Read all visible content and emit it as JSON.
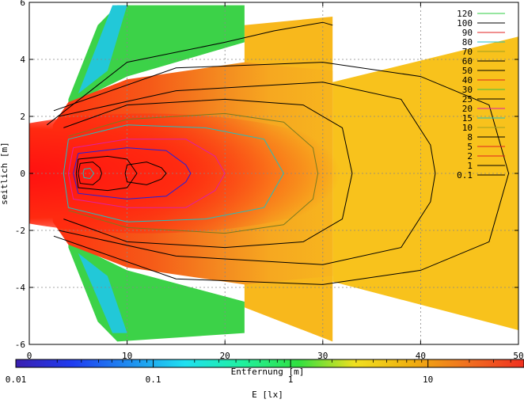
{
  "chart_data": {
    "type": "heatmap",
    "title": "",
    "xlabel": "Entfernung [m]",
    "ylabel": "seitlich [m]",
    "xlim": [
      0,
      50
    ],
    "ylim": [
      -6,
      6
    ],
    "grid": true,
    "x_ticks": [
      "0",
      "10",
      "20",
      "30",
      "40",
      "50"
    ],
    "y_ticks": [
      "-6",
      "-4",
      "-2",
      "0",
      "2",
      "4",
      "6"
    ],
    "legend_position": "top-right",
    "legend": [
      {
        "label": "120",
        "color": "#2ecc40"
      },
      {
        "label": "100",
        "color": "#000000"
      },
      {
        "label": "90",
        "color": "#e02020"
      },
      {
        "label": "80",
        "color": "#20c0c0"
      },
      {
        "label": "70",
        "color": "#a0a020"
      },
      {
        "label": "60",
        "color": "#000000"
      },
      {
        "label": "50",
        "color": "#000000"
      },
      {
        "label": "40",
        "color": "#e02020"
      },
      {
        "label": "30",
        "color": "#40c040"
      },
      {
        "label": "25",
        "color": "#000000"
      },
      {
        "label": "20",
        "color": "#e020a0"
      },
      {
        "label": "15",
        "color": "#20c0c0"
      },
      {
        "label": "10",
        "color": "#a0a020"
      },
      {
        "label": "8",
        "color": "#000000"
      },
      {
        "label": "5",
        "color": "#e02020"
      },
      {
        "label": "2",
        "color": "#e02020"
      },
      {
        "label": "1",
        "color": "#000000"
      },
      {
        "label": "0.1",
        "color": "#000000"
      }
    ],
    "colorbar": {
      "label": "E [lx]",
      "scale": "log",
      "range": [
        0.01,
        50
      ],
      "tick_labels": [
        "0.01",
        "0.1",
        "1",
        "10"
      ],
      "stops": [
        "#3a1fb0",
        "#1f3cf0",
        "#1f8cf0",
        "#20e0f0",
        "#20f0a0",
        "#30e040",
        "#f0e020",
        "#f0b010",
        "#f07020",
        "#f03020"
      ]
    },
    "contours": [
      {
        "level": 0.1,
        "color": "#000000",
        "points": [
          [
            1.8,
            1.7
          ],
          [
            10,
            3.9
          ],
          [
            20,
            4.6
          ],
          [
            25,
            5.0
          ],
          [
            30,
            5.3
          ],
          [
            31,
            5.2
          ]
        ]
      },
      {
        "level": 1,
        "color": "#000000",
        "points": [
          [
            2.5,
            2.2
          ],
          [
            15,
            3.7
          ],
          [
            30,
            3.9
          ],
          [
            40,
            3.4
          ],
          [
            47,
            2.4
          ],
          [
            49,
            0
          ],
          [
            47,
            -2.4
          ],
          [
            40,
            -3.4
          ],
          [
            30,
            -3.9
          ],
          [
            15,
            -3.7
          ],
          [
            2.5,
            -2.2
          ]
        ]
      },
      {
        "level": 2,
        "color": "#000000",
        "points": [
          [
            3,
            2.0
          ],
          [
            15,
            2.9
          ],
          [
            30,
            3.2
          ],
          [
            38,
            2.6
          ],
          [
            41,
            1.0
          ],
          [
            41.5,
            0
          ],
          [
            41,
            -1.0
          ],
          [
            38,
            -2.6
          ],
          [
            30,
            -3.2
          ],
          [
            15,
            -2.9
          ],
          [
            3,
            -2.0
          ]
        ]
      },
      {
        "level": 5,
        "color": "#000000",
        "points": [
          [
            3.5,
            1.6
          ],
          [
            10,
            2.4
          ],
          [
            20,
            2.6
          ],
          [
            28,
            2.4
          ],
          [
            32,
            1.6
          ],
          [
            33,
            0
          ],
          [
            32,
            -1.6
          ],
          [
            28,
            -2.4
          ],
          [
            20,
            -2.6
          ],
          [
            10,
            -2.4
          ],
          [
            3.5,
            -1.6
          ]
        ]
      },
      {
        "level": 8,
        "color": "#7a7a20",
        "points": [
          [
            4,
            1.3
          ],
          [
            10,
            1.9
          ],
          [
            20,
            2.1
          ],
          [
            26,
            1.8
          ],
          [
            29,
            0.9
          ],
          [
            29.5,
            0
          ],
          [
            29,
            -0.9
          ],
          [
            26,
            -1.8
          ],
          [
            20,
            -2.1
          ],
          [
            10,
            -1.9
          ],
          [
            4,
            -1.3
          ]
        ]
      },
      {
        "level": 10,
        "color": "#20c0c0",
        "points": [
          [
            4,
            1.2
          ],
          [
            10,
            1.7
          ],
          [
            18,
            1.6
          ],
          [
            24,
            1.2
          ],
          [
            26,
            0
          ],
          [
            24,
            -1.2
          ],
          [
            18,
            -1.6
          ],
          [
            10,
            -1.7
          ],
          [
            4,
            -1.2
          ],
          [
            3.5,
            0
          ],
          [
            4,
            1.2
          ]
        ]
      },
      {
        "level": 15,
        "color": "#e020a0",
        "points": [
          [
            4.5,
            0.9
          ],
          [
            10,
            1.2
          ],
          [
            16,
            1.2
          ],
          [
            19,
            0.6
          ],
          [
            20,
            0
          ],
          [
            19,
            -0.6
          ],
          [
            16,
            -1.2
          ],
          [
            10,
            -1.2
          ],
          [
            4.5,
            -0.9
          ],
          [
            4,
            0
          ],
          [
            4.5,
            0.9
          ]
        ]
      },
      {
        "level": 20,
        "color": "#2020e0",
        "points": [
          [
            5,
            0.7
          ],
          [
            10,
            0.9
          ],
          [
            14,
            0.8
          ],
          [
            16,
            0.3
          ],
          [
            16.5,
            0
          ],
          [
            16,
            -0.3
          ],
          [
            14,
            -0.8
          ],
          [
            10,
            -0.9
          ],
          [
            5,
            -0.7
          ],
          [
            4.5,
            0
          ],
          [
            5,
            0.7
          ]
        ]
      },
      {
        "level": 30,
        "color": "#000000",
        "points": [
          [
            5,
            0.5
          ],
          [
            8,
            0.6
          ],
          [
            10,
            0.5
          ],
          [
            11,
            0
          ],
          [
            10,
            -0.5
          ],
          [
            8,
            -0.6
          ],
          [
            5,
            -0.5
          ],
          [
            4.8,
            0
          ],
          [
            5,
            0.5
          ]
        ]
      },
      {
        "level": 40,
        "color": "#000000",
        "points": [
          [
            10,
            0.3
          ],
          [
            12,
            0.4
          ],
          [
            13.5,
            0.2
          ],
          [
            14,
            0
          ],
          [
            13.5,
            -0.2
          ],
          [
            12,
            -0.4
          ],
          [
            10,
            -0.3
          ],
          [
            9.8,
            0
          ],
          [
            10,
            0.3
          ]
        ]
      },
      {
        "level": 60,
        "color": "#000000",
        "points": [
          [
            5.2,
            0.35
          ],
          [
            6.5,
            0.4
          ],
          [
            7.2,
            0.2
          ],
          [
            7.4,
            0
          ],
          [
            7.2,
            -0.2
          ],
          [
            6.5,
            -0.4
          ],
          [
            5.2,
            -0.35
          ],
          [
            5.0,
            0
          ],
          [
            5.2,
            0.35
          ]
        ]
      },
      {
        "level": 100,
        "color": "#20c0c0",
        "points": [
          [
            5.6,
            0.15
          ],
          [
            6.2,
            0.18
          ],
          [
            6.6,
            0
          ],
          [
            6.2,
            -0.18
          ],
          [
            5.6,
            -0.15
          ],
          [
            5.5,
            0
          ],
          [
            5.6,
            0.15
          ]
        ]
      }
    ]
  }
}
